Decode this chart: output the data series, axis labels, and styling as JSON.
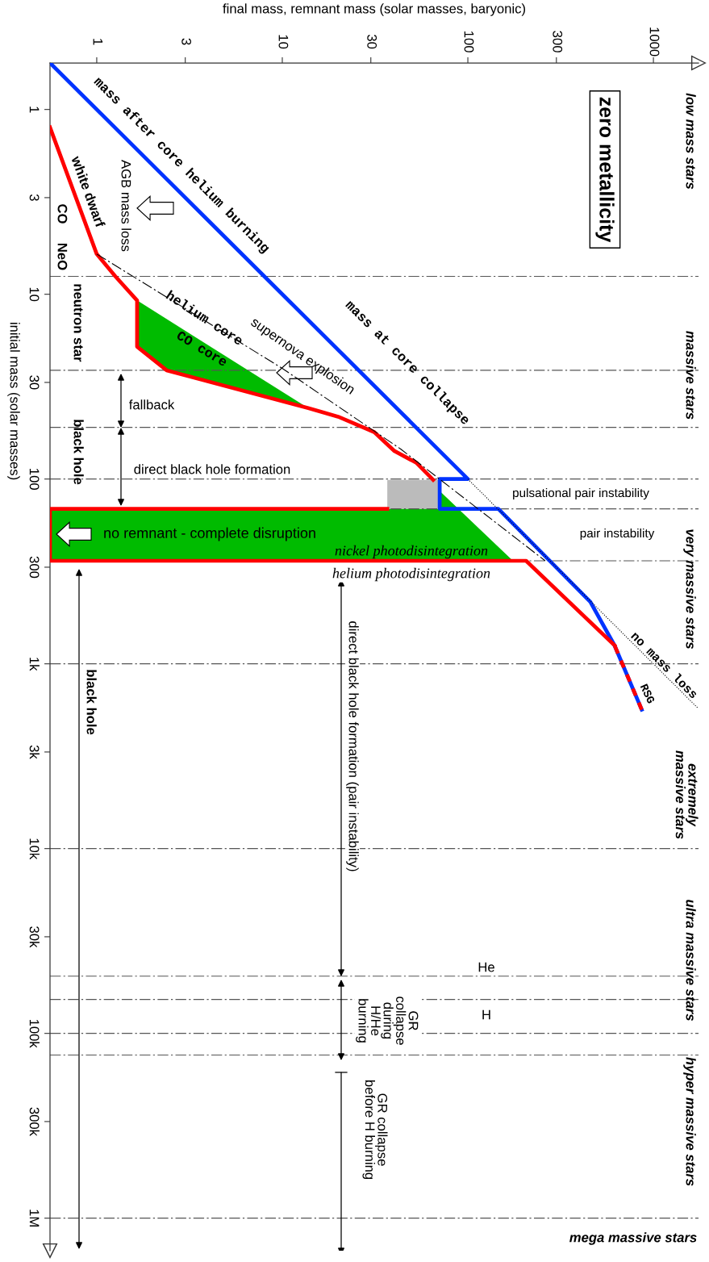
{
  "chart_data": {
    "type": "line",
    "xlabel": "final mass, remnant mass (solar masses, baryonic)",
    "ylabel": "initial mass (solar masses)",
    "log": "xy",
    "xlim": [
      0.56,
      1750
    ],
    "ylim": [
      1500000,
      0.56
    ],
    "xticks": [
      1,
      3,
      10,
      30,
      100,
      300,
      1000
    ],
    "yticks": [
      1,
      3,
      10,
      30,
      100,
      300,
      {
        "value": 1000,
        "label": "1k"
      },
      {
        "value": 3000,
        "label": "3k"
      },
      {
        "value": 10000,
        "label": "10k"
      },
      {
        "value": 30000,
        "label": "30k"
      },
      {
        "value": 100000,
        "label": "100k"
      },
      {
        "value": 300000,
        "label": "300k"
      },
      {
        "value": 1000000,
        "label": "1M"
      }
    ],
    "grid": false,
    "marker": "none",
    "series": [
      {
        "type": "area",
        "color": "#00bb00",
        "x": [
          1.65,
          1.65,
          2.38,
          13.8,
          1.65
        ],
        "values": [
          10.8,
          19.2,
          25.8,
          41.3,
          10.8
        ]
      },
      {
        "type": "area",
        "color": "#00bb00",
        "x": [
          0.56,
          70.5,
          70.5,
          175,
          0.56
        ],
        "values": [
          145,
          145,
          116,
          277,
          277
        ]
      },
      {
        "type": "area",
        "color": "#bbbbbb",
        "x": [
          36.8,
          70.5,
          70.5,
          36.8
        ],
        "values": [
          101,
          101,
          145,
          145
        ]
      },
      {
        "line_style": "dotted",
        "color": "#000000",
        "x": [
          100,
          1750
        ],
        "values": [
          100,
          1750
        ]
      },
      {
        "line_style": "dashdot",
        "color": "#000000",
        "x": [
          1.0,
          9.95,
          43.6,
          261
        ],
        "values": [
          6.06,
          25.1,
          69,
          277
        ]
      },
      {
        "line_style": "solid",
        "color": "#0033ff",
        "x": [
          0.56,
          100,
          70.5,
          70.5,
          146,
          457,
          617,
          865
        ],
        "values": [
          0.56,
          100,
          100,
          145,
          145,
          462,
          794,
          1770
        ]
      },
      {
        "line_style": "solid",
        "color": "#ff0000",
        "x": [
          0.56,
          1.0,
          1.26,
          1.65,
          1.65,
          2.38,
          13.8,
          20,
          31.3,
          40.2,
          52.7,
          65,
          null,
          36.8,
          0.56,
          0.56,
          206,
          617
        ],
        "values": [
          1.25,
          6.06,
          8.0,
          10.8,
          19.2,
          25.8,
          41.3,
          46,
          55.7,
          70.5,
          81.6,
          101,
          null,
          145,
          145,
          277,
          277,
          794
        ]
      },
      {
        "line_style": "dashed",
        "color": "#ff0000",
        "x": [
          865,
          617
        ],
        "values": [
          1770,
          794
        ]
      }
    ],
    "ref_lines": [
      {
        "axis": "y",
        "value": 8
      },
      {
        "axis": "y",
        "value": 25.8
      },
      {
        "axis": "y",
        "value": 52.5
      },
      {
        "axis": "y",
        "value": 100
      },
      {
        "axis": "y",
        "value": 145
      },
      {
        "axis": "y",
        "value": 277
      },
      {
        "axis": "y",
        "value": 1000
      },
      {
        "axis": "y",
        "value": 10000
      },
      {
        "axis": "y",
        "value": 49000
      },
      {
        "axis": "y",
        "value": 65500
      },
      {
        "axis": "y",
        "value": 100000
      },
      {
        "axis": "y",
        "value": 131000
      },
      {
        "axis": "y",
        "value": 1000000
      }
    ],
    "annotations": [
      "zero metallicity",
      "low mass stars",
      "massive stars",
      "very massive stars",
      "extremely\nmassive stars",
      "ultra massive stars",
      "hyper massive stars",
      "mega massive stars",
      "mass after core helium burning",
      "mass at core collapse",
      "white dwarf",
      "AGB mass loss",
      "CO",
      "NeO",
      "neutron star",
      "black hole",
      "helium core",
      "CO core",
      "supernova explosion",
      "no remnant - complete disruption",
      "nickel photodisintegration",
      "helium photodisintegration",
      "pulsational pair instability",
      "pair instability",
      "no mass loss",
      "RSG",
      "He",
      "H",
      "fallback",
      "direct black hole formation",
      "black hole",
      "direct black hole formation (pair instability)",
      "GR\ncollapse\nduring\nH/He\nburning",
      "GR collapse\nbefore H burning"
    ]
  }
}
